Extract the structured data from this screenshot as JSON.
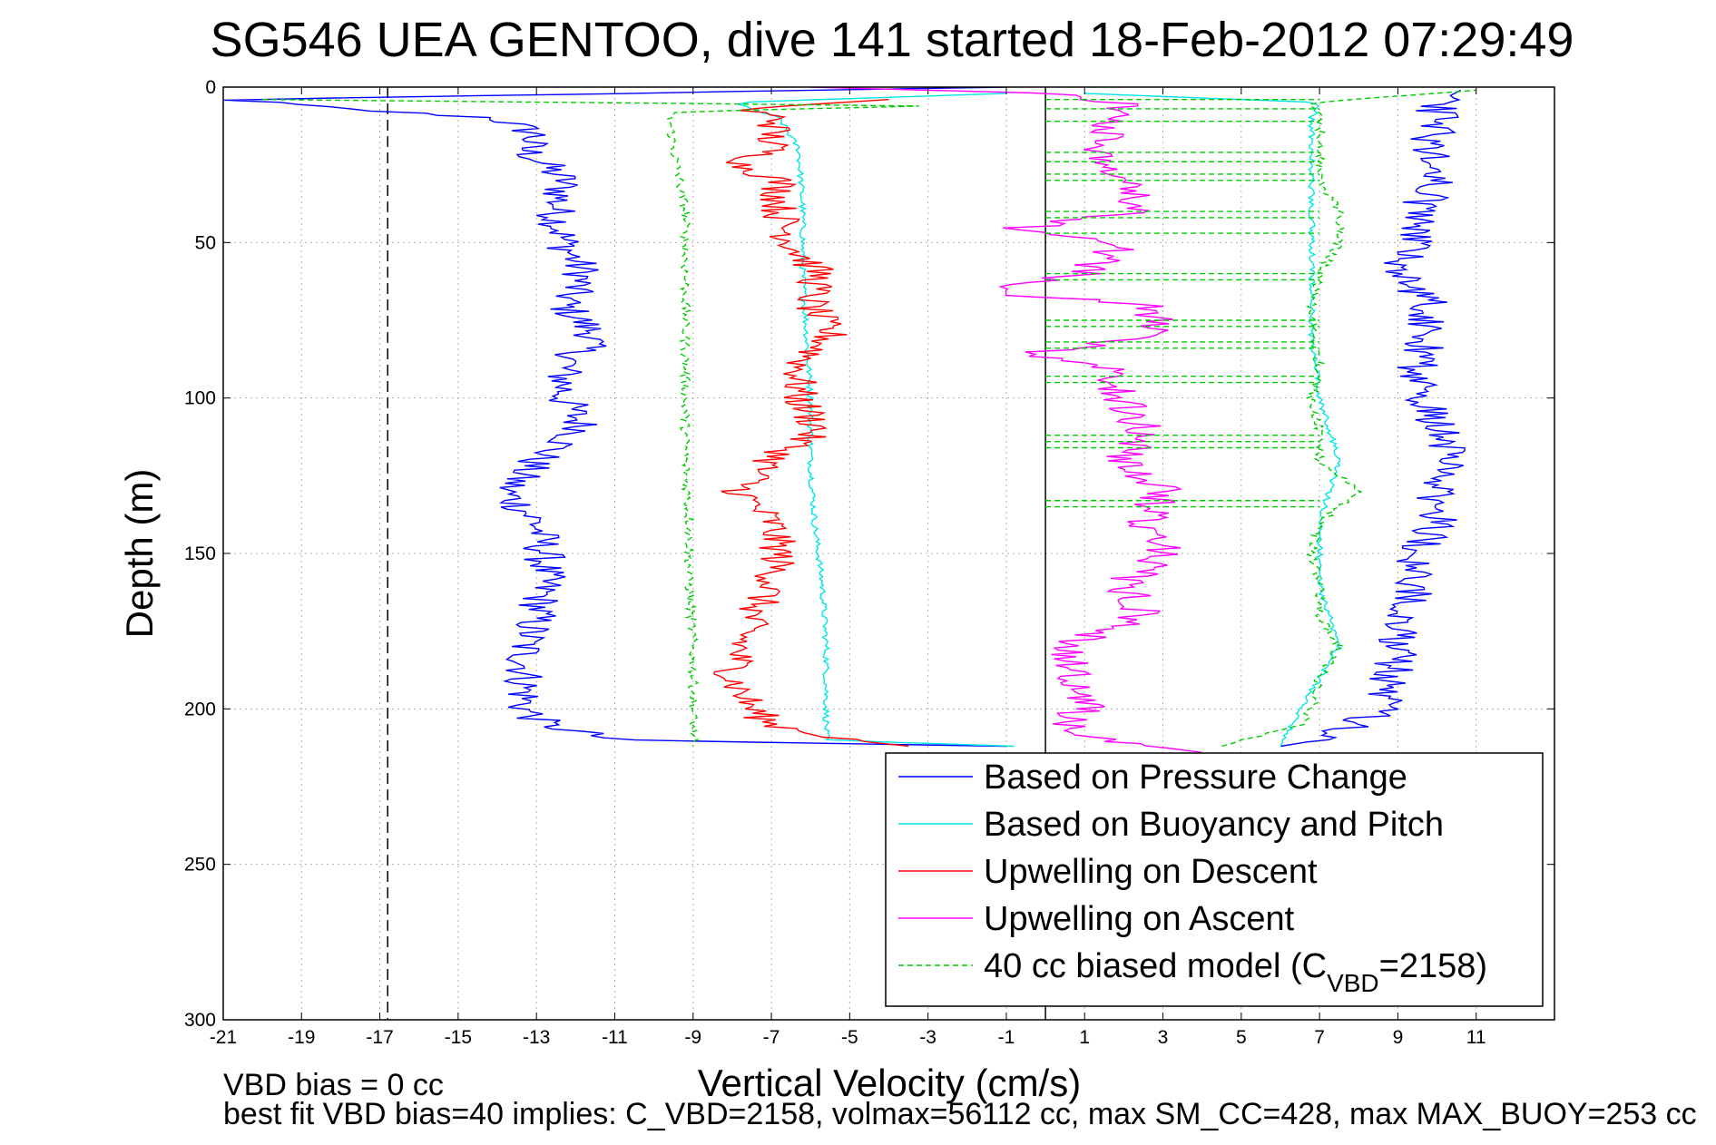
{
  "chart_data": {
    "type": "line",
    "title": "SG546 UEA GENTOO, dive 141 started 18-Feb-2012 07:29:49",
    "xlabel": "Vertical Velocity (cm/s)",
    "ylabel": "Depth (m)",
    "xlim": [
      -21,
      13
    ],
    "ylim": [
      300,
      0
    ],
    "y_reversed": true,
    "grid": true,
    "legend_position": "bottom-right",
    "x_ticks": [
      "-21",
      "-19",
      "-17",
      "-15",
      "-13",
      "-11",
      "-9",
      "-7",
      "-5",
      "-3",
      "-1",
      "1",
      "3",
      "5",
      "7",
      "9",
      "11"
    ],
    "y_ticks": [
      "0",
      "50",
      "100",
      "150",
      "200",
      "250",
      "300"
    ],
    "reference_lines": [
      {
        "x": 0,
        "style": "solid",
        "color": "#000000"
      },
      {
        "x": -16.8,
        "style": "dashed",
        "color": "#000000"
      }
    ],
    "series": [
      {
        "name": "Based on Pressure Change",
        "color": "#0000ff",
        "style": "solid",
        "descent": {
          "depth": [
            0,
            4,
            7,
            10,
            15,
            20,
            30,
            40,
            50,
            60,
            70,
            80,
            90,
            100,
            110,
            120,
            130,
            140,
            150,
            160,
            170,
            180,
            190,
            200,
            205,
            210,
            212
          ],
          "velocity": [
            -1.0,
            -20.8,
            -18.0,
            -14.0,
            -13.0,
            -13.3,
            -12.3,
            -12.5,
            -12.3,
            -11.8,
            -12.3,
            -11.5,
            -12.3,
            -12.3,
            -11.8,
            -13.0,
            -13.8,
            -13.0,
            -12.8,
            -12.8,
            -13.0,
            -13.3,
            -13.3,
            -13.3,
            -12.8,
            -11.0,
            -1.0
          ]
        },
        "ascent": {
          "depth": [
            212,
            210,
            205,
            200,
            190,
            180,
            170,
            160,
            150,
            140,
            130,
            120,
            110,
            100,
            90,
            80,
            70,
            60,
            50,
            40,
            30,
            20,
            10,
            5,
            1
          ],
          "velocity": [
            6.0,
            7.0,
            8.0,
            8.5,
            8.8,
            9.0,
            9.2,
            9.5,
            9.5,
            10.0,
            10.0,
            10.2,
            10.2,
            9.5,
            9.5,
            9.8,
            9.8,
            9.0,
            9.5,
            9.5,
            10.0,
            9.8,
            10.0,
            10.0,
            10.6
          ]
        }
      },
      {
        "name": "Based on Buoyancy and Pitch",
        "color": "#00e5e5",
        "style": "solid",
        "descent": {
          "depth": [
            2,
            5,
            10,
            20,
            40,
            60,
            80,
            100,
            120,
            140,
            160,
            180,
            200,
            210,
            212
          ],
          "velocity": [
            -1.0,
            -8.0,
            -6.8,
            -6.3,
            -6.2,
            -6.2,
            -6.1,
            -6.0,
            -6.0,
            -5.9,
            -5.7,
            -5.6,
            -5.6,
            -5.6,
            -0.8
          ]
        },
        "ascent": {
          "depth": [
            212,
            200,
            180,
            160,
            140,
            120,
            100,
            80,
            60,
            40,
            20,
            10,
            5,
            2
          ],
          "velocity": [
            6.0,
            6.5,
            7.5,
            7.0,
            7.0,
            7.5,
            7.0,
            6.8,
            6.8,
            6.8,
            6.8,
            6.8,
            7.0,
            1.0
          ]
        }
      },
      {
        "name": "Upwelling on Descent",
        "color": "#ff0000",
        "style": "solid",
        "depth": [
          4,
          7,
          10,
          15,
          20,
          25,
          30,
          40,
          50,
          60,
          70,
          80,
          90,
          100,
          110,
          120,
          130,
          140,
          150,
          160,
          170,
          180,
          190,
          200,
          205,
          210,
          212
        ],
        "velocity": [
          -4.0,
          -7.8,
          -6.8,
          -7.0,
          -7.0,
          -7.8,
          -6.8,
          -6.8,
          -6.5,
          -5.8,
          -6.0,
          -5.5,
          -6.3,
          -6.3,
          -5.8,
          -7.0,
          -7.8,
          -7.0,
          -6.8,
          -7.0,
          -7.5,
          -7.8,
          -8.0,
          -7.5,
          -7.0,
          -5.0,
          -3.5
        ]
      },
      {
        "name": "Upwelling on Ascent",
        "color": "#ff00ff",
        "style": "solid",
        "depth": [
          214,
          210,
          205,
          200,
          190,
          180,
          170,
          160,
          150,
          140,
          130,
          120,
          110,
          100,
          90,
          86,
          80,
          70,
          66,
          60,
          50,
          46,
          40,
          30,
          20,
          10,
          5,
          2,
          0
        ],
        "velocity": [
          4.0,
          1.5,
          0.5,
          1.0,
          0.8,
          0.5,
          2.5,
          2.0,
          3.0,
          2.5,
          3.0,
          2.0,
          2.5,
          2.0,
          1.5,
          -0.8,
          3.0,
          2.5,
          -1.5,
          1.0,
          2.0,
          -1.0,
          2.5,
          2.0,
          1.5,
          1.5,
          2.0,
          0.0,
          -6.0
        ]
      },
      {
        "name": "40 cc biased model (C_VBD=2158)",
        "color": "#00cc00",
        "style": "dashed",
        "descent": {
          "depth": [
            4,
            6,
            8,
            10,
            20,
            40,
            60,
            80,
            100,
            120,
            140,
            160,
            180,
            200,
            210,
            212
          ],
          "velocity": [
            -20.0,
            -3.0,
            -9.5,
            -9.6,
            -9.5,
            -9.2,
            -9.2,
            -9.2,
            -9.2,
            -9.2,
            -9.1,
            -9.1,
            -9.0,
            -9.0,
            -9.0,
            -9.0
          ]
        },
        "ascent": {
          "depth": [
            212,
            205,
            200,
            190,
            180,
            170,
            160,
            150,
            140,
            130,
            120,
            110,
            100,
            90,
            80,
            70,
            60,
            50,
            40,
            30,
            20,
            10,
            5,
            1
          ],
          "velocity": [
            4.5,
            6.5,
            6.8,
            7.0,
            7.5,
            7.0,
            7.0,
            6.8,
            7.0,
            8.0,
            7.0,
            7.0,
            6.8,
            7.0,
            6.8,
            6.8,
            7.0,
            7.5,
            7.5,
            7.0,
            7.0,
            7.0,
            6.8,
            11.0
          ]
        },
        "horizontal_segments_depth": [
          4,
          7,
          11,
          21,
          24,
          28,
          30,
          40,
          42,
          47,
          60,
          62,
          75,
          77,
          82,
          84,
          93,
          95,
          112,
          114,
          116,
          133,
          135
        ]
      }
    ],
    "annotations": [
      {
        "text": "VBD bias = 0 cc"
      },
      {
        "text": "best fit VBD bias=40 implies: C_VBD=2158, volmax=56112 cc, max SM_CC=428, max MAX_BUOY=253 cc"
      }
    ]
  }
}
